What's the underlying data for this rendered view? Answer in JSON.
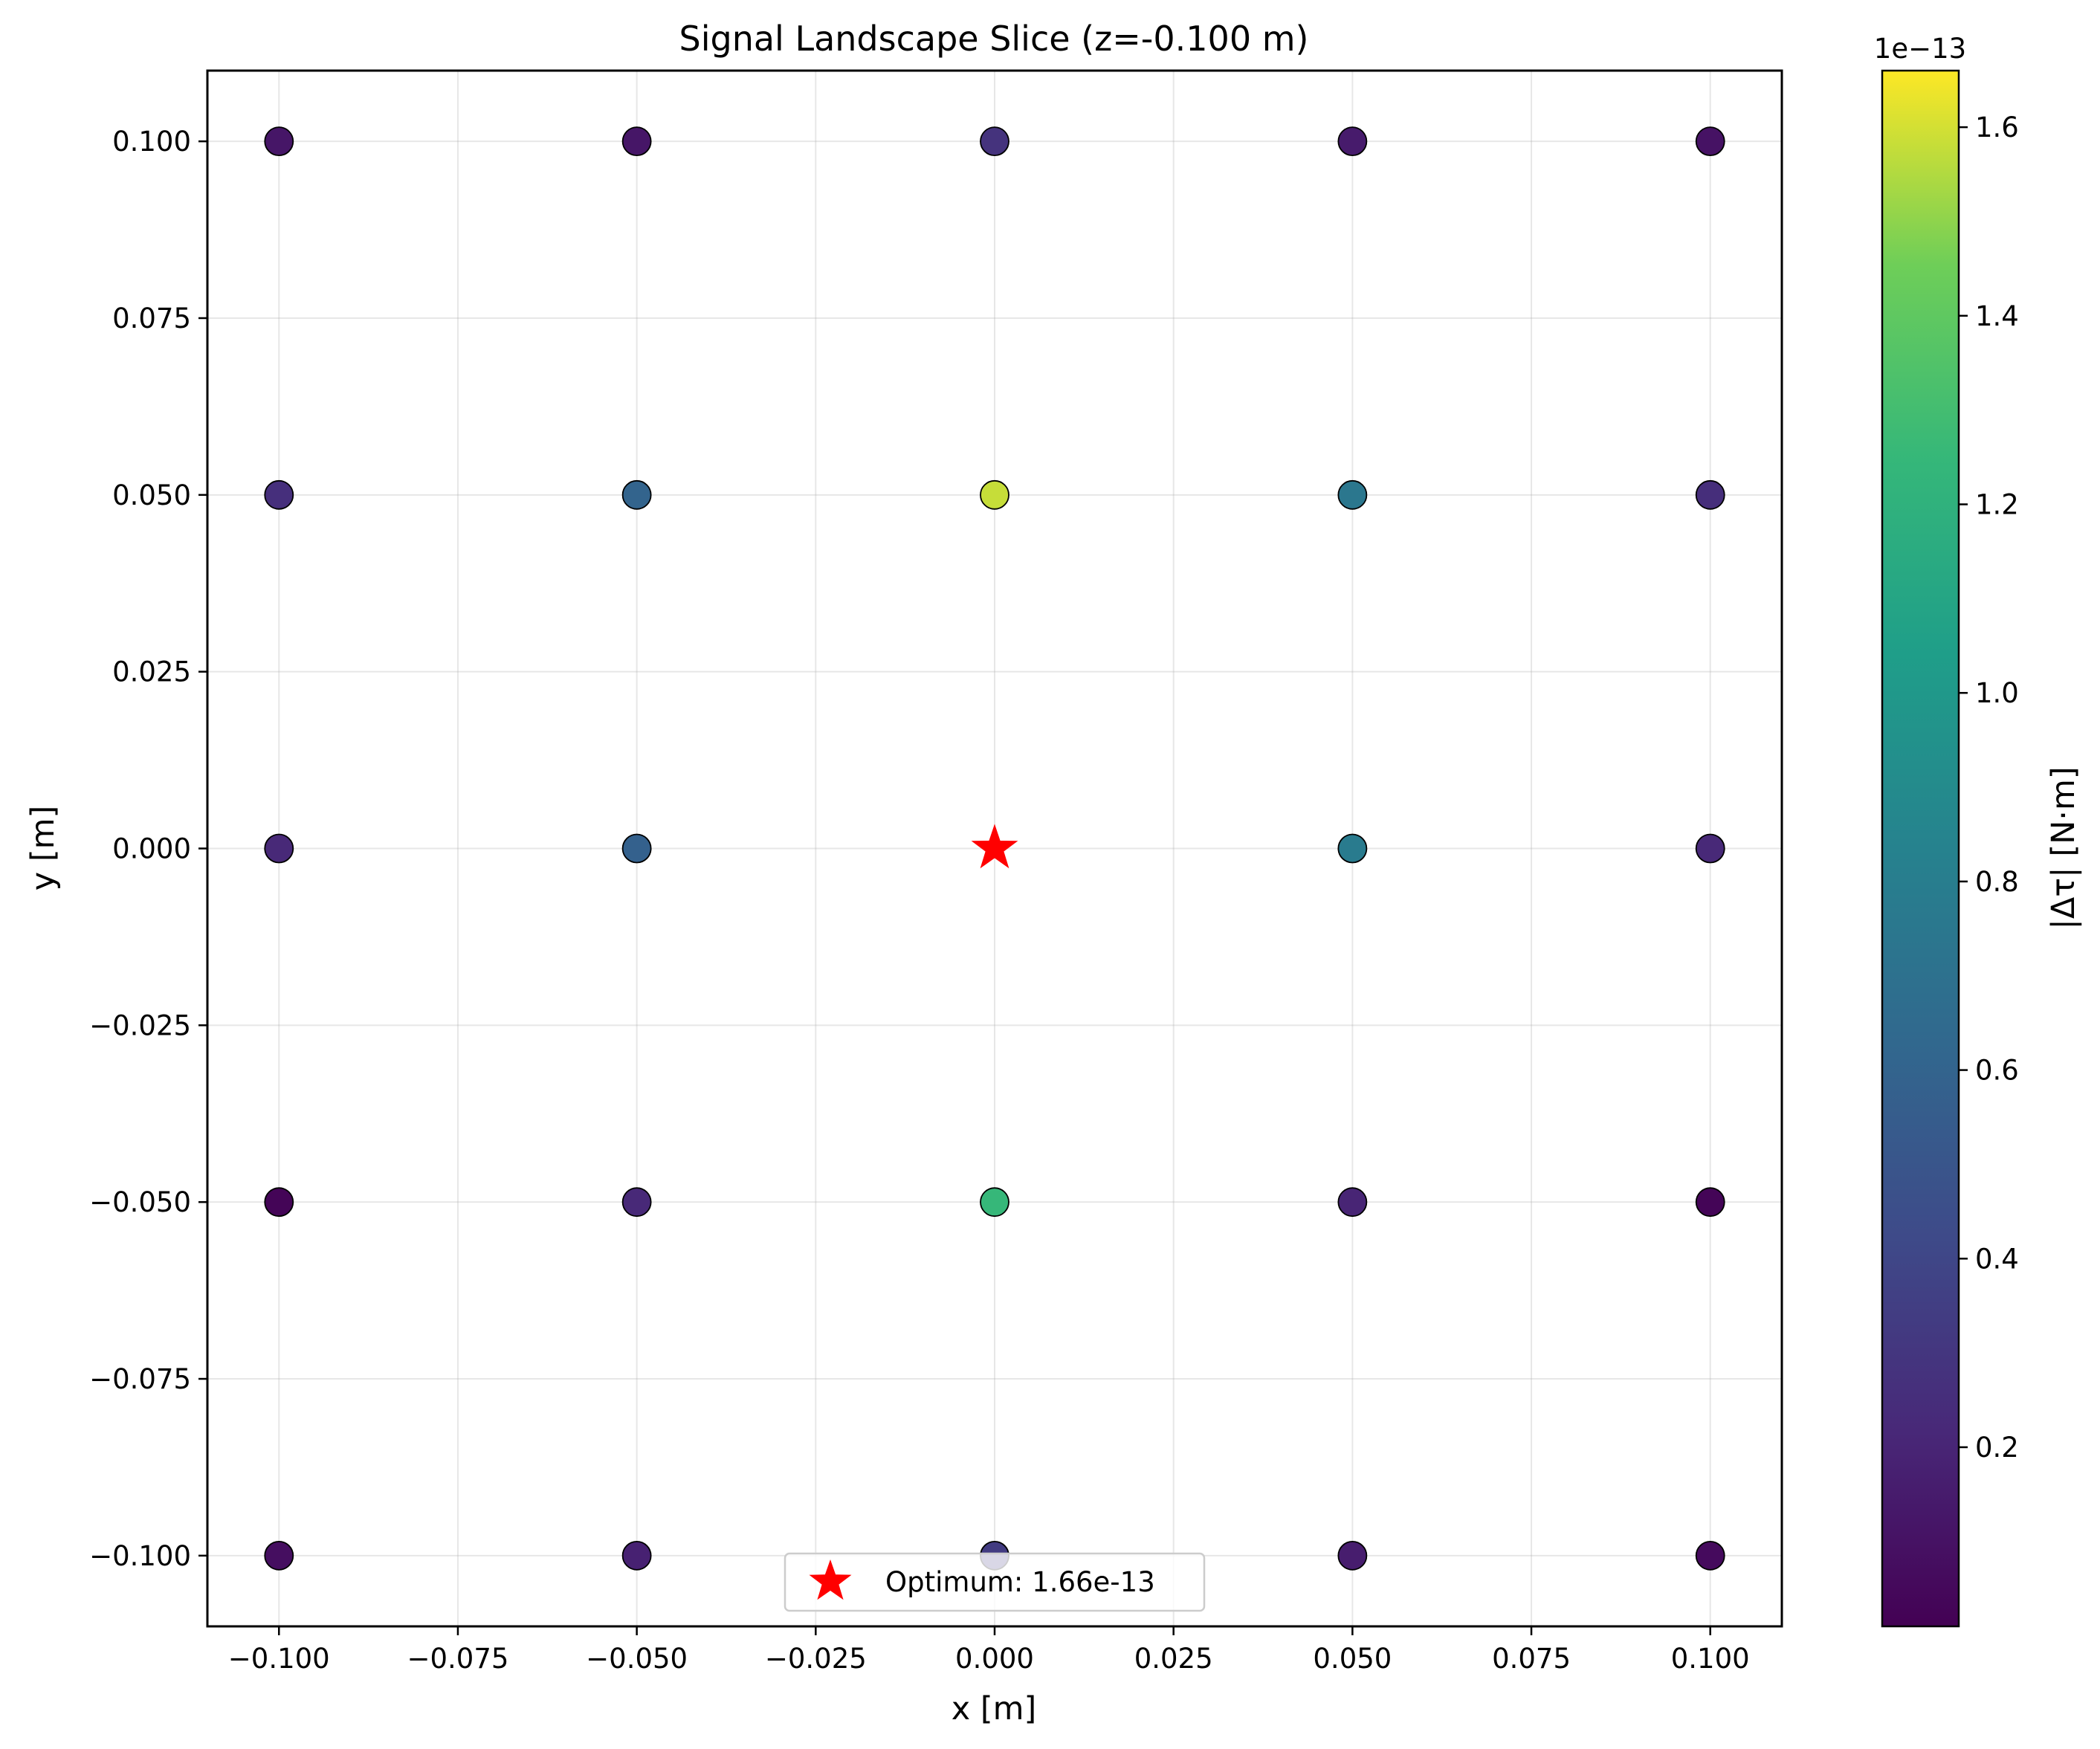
{
  "chart_data": {
    "type": "scatter",
    "title": "Signal Landscape Slice (z=-0.100 m)",
    "xlabel": "x [m]",
    "ylabel": "y [m]",
    "xlim": [
      -0.11,
      0.11
    ],
    "ylim": [
      -0.11,
      0.11
    ],
    "grid": true,
    "x_ticks": [
      -0.1,
      -0.075,
      -0.05,
      -0.025,
      0.0,
      0.025,
      0.05,
      0.075,
      0.1
    ],
    "x_tick_labels": [
      "−0.100",
      "−0.075",
      "−0.050",
      "−0.025",
      "0.000",
      "0.025",
      "0.050",
      "0.075",
      "0.100"
    ],
    "y_ticks": [
      0.1,
      0.075,
      0.05,
      0.025,
      0.0,
      -0.025,
      -0.05,
      -0.075,
      -0.1
    ],
    "y_tick_labels": [
      "0.100",
      "0.075",
      "0.050",
      "0.025",
      "0.000",
      "−0.025",
      "−0.050",
      "−0.075",
      "−0.100"
    ],
    "colormap": "viridis",
    "color_range": [
      0.01,
      1.66
    ],
    "colorbar": {
      "label": "|Δτ| [N·m]",
      "offset_text": "1e−13",
      "ticks": [
        0.2,
        0.4,
        0.6,
        0.8,
        1.0,
        1.2,
        1.4,
        1.6
      ],
      "tick_labels": [
        "0.2",
        "0.4",
        "0.6",
        "0.8",
        "1.0",
        "1.2",
        "1.4",
        "1.6"
      ]
    },
    "points": [
      {
        "x": -0.1,
        "y": 0.1,
        "value": 0.12
      },
      {
        "x": -0.05,
        "y": 0.1,
        "value": 0.12
      },
      {
        "x": 0.0,
        "y": 0.1,
        "value": 0.28
      },
      {
        "x": 0.05,
        "y": 0.1,
        "value": 0.15
      },
      {
        "x": 0.1,
        "y": 0.1,
        "value": 0.1
      },
      {
        "x": -0.1,
        "y": 0.05,
        "value": 0.26
      },
      {
        "x": -0.05,
        "y": 0.05,
        "value": 0.6
      },
      {
        "x": 0.0,
        "y": 0.05,
        "value": 1.58
      },
      {
        "x": 0.05,
        "y": 0.05,
        "value": 0.75
      },
      {
        "x": 0.1,
        "y": 0.05,
        "value": 0.25
      },
      {
        "x": -0.1,
        "y": 0.0,
        "value": 0.22
      },
      {
        "x": -0.05,
        "y": 0.0,
        "value": 0.58
      },
      {
        "x": 0.05,
        "y": 0.0,
        "value": 0.78
      },
      {
        "x": 0.1,
        "y": 0.0,
        "value": 0.22
      },
      {
        "x": -0.1,
        "y": -0.05,
        "value": 0.03
      },
      {
        "x": -0.05,
        "y": -0.05,
        "value": 0.22
      },
      {
        "x": 0.0,
        "y": -0.05,
        "value": 1.25
      },
      {
        "x": 0.05,
        "y": -0.05,
        "value": 0.2
      },
      {
        "x": 0.1,
        "y": -0.05,
        "value": 0.03
      },
      {
        "x": -0.1,
        "y": -0.1,
        "value": 0.08
      },
      {
        "x": -0.05,
        "y": -0.1,
        "value": 0.18
      },
      {
        "x": 0.0,
        "y": -0.1,
        "value": 0.33
      },
      {
        "x": 0.05,
        "y": -0.1,
        "value": 0.16
      },
      {
        "x": 0.1,
        "y": -0.1,
        "value": 0.06
      }
    ],
    "optimum": {
      "x": 0.0,
      "y": 0.0,
      "color": "#ff0000",
      "label": "Optimum: 1.66e-13"
    },
    "legend_placement": "lower-center"
  }
}
